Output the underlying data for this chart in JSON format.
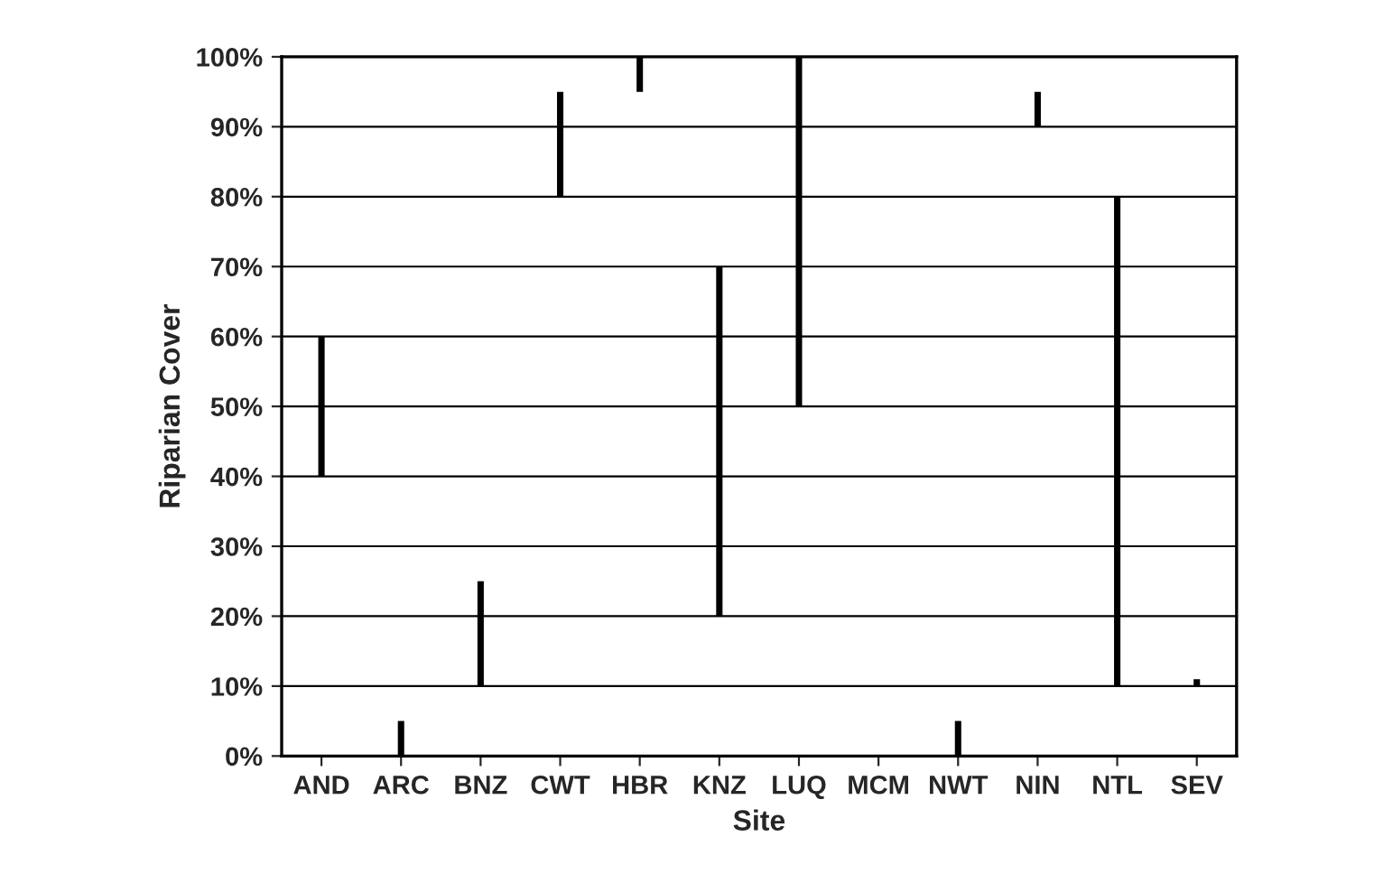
{
  "chart_data": {
    "type": "bar",
    "xlabel": "Site",
    "ylabel": "Riparian Cover",
    "categories": [
      "AND",
      "ARC",
      "BNZ",
      "CWT",
      "HBR",
      "KNZ",
      "LUQ",
      "MCM",
      "NWT",
      "NIN",
      "NTL",
      "SEV"
    ],
    "base": [
      40,
      0,
      10,
      80,
      95,
      20,
      50,
      null,
      0,
      90,
      10,
      10
    ],
    "values": [
      20,
      5,
      15,
      15,
      5,
      50,
      50,
      null,
      5,
      5,
      70,
      1
    ],
    "color": "#000000",
    "ylim": [
      0,
      100
    ],
    "yticks": [
      {
        "value": 0,
        "label": "0%"
      },
      {
        "value": 10,
        "label": "10%"
      },
      {
        "value": 20,
        "label": "20%"
      },
      {
        "value": 30,
        "label": "30%"
      },
      {
        "value": 40,
        "label": "40%"
      },
      {
        "value": 50,
        "label": "50%"
      },
      {
        "value": 60,
        "label": "60%"
      },
      {
        "value": 70,
        "label": "70%"
      },
      {
        "value": 80,
        "label": "80%"
      },
      {
        "value": 90,
        "label": "90%"
      },
      {
        "value": 100,
        "label": "100%"
      }
    ],
    "grid": "y",
    "legend": false
  }
}
